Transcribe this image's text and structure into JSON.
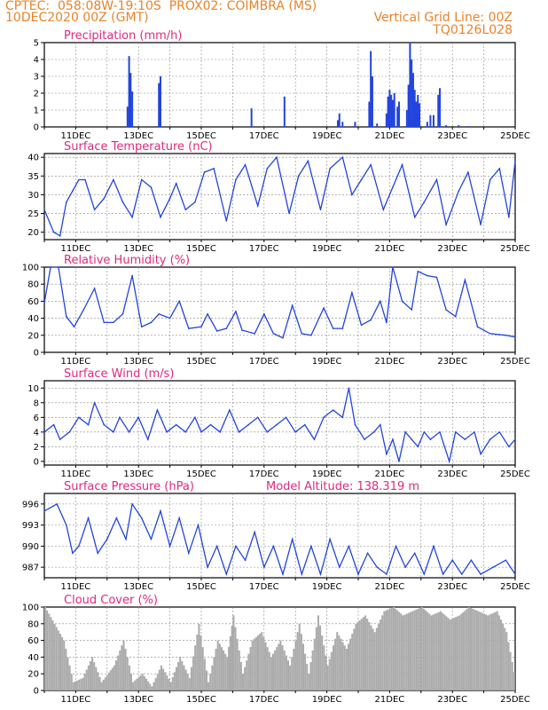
{
  "header": {
    "line1_left": "CPTEC:  058:08W-19:10S  PROX02: COIMBRA (MS)",
    "line2_left": "10DEC2020 00Z (GMT)",
    "line2_right": "Vertical Grid Line: 00Z",
    "line3_right": "TQ0126L028"
  },
  "colors": {
    "header": "#e8832a",
    "title": "#e0287e",
    "line": "#2244dd",
    "bar": "#2244dd",
    "cloud": "#aaaaaa",
    "grid": "#888888"
  },
  "x_axis": {
    "tick_labels": [
      "11DEC",
      "13DEC",
      "15DEC",
      "17DEC",
      "19DEC",
      "21DEC",
      "23DEC",
      "25DEC"
    ],
    "range_days": [
      10,
      25
    ]
  },
  "chart_data": [
    {
      "type": "bar",
      "title": "Precipitation (mm/h)",
      "ylim": [
        0,
        5
      ],
      "yticks": [
        "0",
        "1",
        "2",
        "3",
        "4",
        "5"
      ],
      "points": [
        [
          12.65,
          1.2
        ],
        [
          12.7,
          4.2
        ],
        [
          12.75,
          3.2
        ],
        [
          12.8,
          2.1
        ],
        [
          13.65,
          2.6
        ],
        [
          13.7,
          3.0
        ],
        [
          16.6,
          1.1
        ],
        [
          17.65,
          1.8
        ],
        [
          19.35,
          0.4
        ],
        [
          19.4,
          0.8
        ],
        [
          19.5,
          0.3
        ],
        [
          19.9,
          0.3
        ],
        [
          20.35,
          1.5
        ],
        [
          20.4,
          4.5
        ],
        [
          20.45,
          3.0
        ],
        [
          20.6,
          0.2
        ],
        [
          20.9,
          0.8
        ],
        [
          20.95,
          1.8
        ],
        [
          21.0,
          2.2
        ],
        [
          21.05,
          1.9
        ],
        [
          21.1,
          1.6
        ],
        [
          21.15,
          2.0
        ],
        [
          21.25,
          1.2
        ],
        [
          21.3,
          1.5
        ],
        [
          21.55,
          1.0
        ],
        [
          21.6,
          2.5
        ],
        [
          21.65,
          5.0
        ],
        [
          21.7,
          4.0
        ],
        [
          21.75,
          3.2
        ],
        [
          21.8,
          2.2
        ],
        [
          21.85,
          1.5
        ],
        [
          21.9,
          1.9
        ],
        [
          21.95,
          1.4
        ],
        [
          22.2,
          0.3
        ],
        [
          22.3,
          0.7
        ],
        [
          22.4,
          0.7
        ],
        [
          22.55,
          1.9
        ],
        [
          22.6,
          2.3
        ],
        [
          22.8,
          0.1
        ],
        [
          23.2,
          0.1
        ],
        [
          23.5,
          0.05
        ]
      ]
    },
    {
      "type": "line",
      "title": "Surface Temperature (nC)",
      "ylim": [
        18,
        41
      ],
      "yticks": [
        "20",
        "25",
        "30",
        "35",
        "40"
      ],
      "points": [
        [
          10,
          26
        ],
        [
          10.3,
          20
        ],
        [
          10.5,
          19
        ],
        [
          10.7,
          28
        ],
        [
          10.9,
          31
        ],
        [
          11.1,
          34
        ],
        [
          11.3,
          34
        ],
        [
          11.6,
          26
        ],
        [
          11.9,
          29
        ],
        [
          12.2,
          34
        ],
        [
          12.5,
          28
        ],
        [
          12.8,
          24
        ],
        [
          13.1,
          34
        ],
        [
          13.4,
          32
        ],
        [
          13.7,
          24
        ],
        [
          14.0,
          29
        ],
        [
          14.2,
          33
        ],
        [
          14.5,
          26
        ],
        [
          14.8,
          28
        ],
        [
          15.1,
          36
        ],
        [
          15.4,
          37
        ],
        [
          15.8,
          23
        ],
        [
          16.1,
          34
        ],
        [
          16.4,
          38
        ],
        [
          16.8,
          27
        ],
        [
          17.1,
          37
        ],
        [
          17.4,
          40
        ],
        [
          17.8,
          25
        ],
        [
          18.1,
          35
        ],
        [
          18.4,
          39
        ],
        [
          18.8,
          26
        ],
        [
          19.1,
          37
        ],
        [
          19.5,
          40
        ],
        [
          19.8,
          30
        ],
        [
          20.1,
          34
        ],
        [
          20.4,
          38
        ],
        [
          20.8,
          26
        ],
        [
          21.1,
          32
        ],
        [
          21.4,
          38
        ],
        [
          21.8,
          24
        ],
        [
          22.1,
          28
        ],
        [
          22.5,
          34
        ],
        [
          22.8,
          22
        ],
        [
          23.2,
          31
        ],
        [
          23.5,
          36
        ],
        [
          23.9,
          22
        ],
        [
          24.2,
          34
        ],
        [
          24.5,
          37
        ],
        [
          24.8,
          24
        ],
        [
          25.0,
          39
        ]
      ]
    },
    {
      "type": "line",
      "title": "Relative Humidity (%)",
      "ylim": [
        0,
        100
      ],
      "yticks": [
        "0",
        "20",
        "40",
        "60",
        "80",
        "100"
      ],
      "points": [
        [
          10,
          58
        ],
        [
          10.2,
          100
        ],
        [
          10.45,
          100
        ],
        [
          10.7,
          42
        ],
        [
          10.95,
          30
        ],
        [
          11.25,
          50
        ],
        [
          11.6,
          75
        ],
        [
          11.9,
          35
        ],
        [
          12.2,
          35
        ],
        [
          12.5,
          45
        ],
        [
          12.8,
          90
        ],
        [
          13.1,
          30
        ],
        [
          13.4,
          35
        ],
        [
          13.65,
          45
        ],
        [
          14.0,
          40
        ],
        [
          14.3,
          60
        ],
        [
          14.6,
          28
        ],
        [
          15.0,
          30
        ],
        [
          15.2,
          45
        ],
        [
          15.5,
          25
        ],
        [
          15.8,
          28
        ],
        [
          16.1,
          48
        ],
        [
          16.3,
          26
        ],
        [
          16.7,
          22
        ],
        [
          17.0,
          45
        ],
        [
          17.3,
          22
        ],
        [
          17.6,
          17
        ],
        [
          17.9,
          55
        ],
        [
          18.2,
          22
        ],
        [
          18.5,
          20
        ],
        [
          18.9,
          52
        ],
        [
          19.2,
          28
        ],
        [
          19.5,
          28
        ],
        [
          19.8,
          70
        ],
        [
          20.1,
          32
        ],
        [
          20.4,
          38
        ],
        [
          20.7,
          60
        ],
        [
          20.9,
          35
        ],
        [
          21.1,
          100
        ],
        [
          21.4,
          60
        ],
        [
          21.7,
          50
        ],
        [
          21.9,
          95
        ],
        [
          22.2,
          90
        ],
        [
          22.5,
          88
        ],
        [
          22.8,
          50
        ],
        [
          23.1,
          42
        ],
        [
          23.4,
          85
        ],
        [
          23.8,
          30
        ],
        [
          24.2,
          22
        ],
        [
          24.7,
          20
        ],
        [
          25.0,
          18
        ]
      ]
    },
    {
      "type": "line",
      "title": "Surface Wind (m/s)",
      "ylim": [
        -0.5,
        11
      ],
      "yticks": [
        "0",
        "2",
        "4",
        "6",
        "8",
        "10"
      ],
      "points": [
        [
          10,
          4
        ],
        [
          10.3,
          5
        ],
        [
          10.5,
          3
        ],
        [
          10.8,
          4
        ],
        [
          11.1,
          6
        ],
        [
          11.4,
          5
        ],
        [
          11.6,
          8
        ],
        [
          11.9,
          5
        ],
        [
          12.2,
          4
        ],
        [
          12.4,
          6
        ],
        [
          12.7,
          4
        ],
        [
          13.0,
          6
        ],
        [
          13.3,
          3
        ],
        [
          13.6,
          7
        ],
        [
          13.9,
          4
        ],
        [
          14.2,
          5
        ],
        [
          14.5,
          4
        ],
        [
          14.8,
          6
        ],
        [
          15.0,
          4
        ],
        [
          15.3,
          5
        ],
        [
          15.6,
          4
        ],
        [
          15.9,
          7
        ],
        [
          16.2,
          4
        ],
        [
          16.5,
          5
        ],
        [
          16.8,
          6
        ],
        [
          17.1,
          4
        ],
        [
          17.4,
          5
        ],
        [
          17.7,
          6
        ],
        [
          18.0,
          4
        ],
        [
          18.3,
          5
        ],
        [
          18.6,
          3
        ],
        [
          18.9,
          6
        ],
        [
          19.2,
          7
        ],
        [
          19.5,
          6
        ],
        [
          19.7,
          10
        ],
        [
          19.9,
          5
        ],
        [
          20.2,
          3
        ],
        [
          20.5,
          4
        ],
        [
          20.7,
          5
        ],
        [
          20.9,
          1
        ],
        [
          21.1,
          3
        ],
        [
          21.3,
          0
        ],
        [
          21.5,
          4
        ],
        [
          21.7,
          3
        ],
        [
          21.9,
          2
        ],
        [
          22.1,
          4
        ],
        [
          22.3,
          3
        ],
        [
          22.6,
          4
        ],
        [
          22.9,
          0
        ],
        [
          23.1,
          4
        ],
        [
          23.4,
          3
        ],
        [
          23.7,
          4
        ],
        [
          23.9,
          1
        ],
        [
          24.2,
          3
        ],
        [
          24.5,
          4
        ],
        [
          24.8,
          2
        ],
        [
          25.0,
          3
        ]
      ]
    },
    {
      "type": "line",
      "title": "Surface Pressure (hPa)",
      "subtitle": "Model Altitude: 138.319 m",
      "ylim": [
        985.5,
        997.5
      ],
      "yticks": [
        "987",
        "990",
        "993",
        "996"
      ],
      "points": [
        [
          10,
          995
        ],
        [
          10.4,
          996
        ],
        [
          10.7,
          993
        ],
        [
          10.9,
          989
        ],
        [
          11.1,
          990
        ],
        [
          11.4,
          994
        ],
        [
          11.7,
          989
        ],
        [
          12.0,
          991
        ],
        [
          12.3,
          994
        ],
        [
          12.6,
          991
        ],
        [
          12.8,
          996
        ],
        [
          13.1,
          994
        ],
        [
          13.4,
          991
        ],
        [
          13.7,
          995
        ],
        [
          14.0,
          990
        ],
        [
          14.3,
          994
        ],
        [
          14.6,
          989
        ],
        [
          14.9,
          993
        ],
        [
          15.2,
          987
        ],
        [
          15.5,
          990
        ],
        [
          15.8,
          986
        ],
        [
          16.1,
          990
        ],
        [
          16.4,
          988
        ],
        [
          16.7,
          992
        ],
        [
          17.0,
          987
        ],
        [
          17.3,
          990
        ],
        [
          17.6,
          986
        ],
        [
          17.9,
          991
        ],
        [
          18.2,
          986
        ],
        [
          18.5,
          990
        ],
        [
          18.8,
          986
        ],
        [
          19.1,
          991
        ],
        [
          19.4,
          987
        ],
        [
          19.7,
          990
        ],
        [
          20.0,
          986
        ],
        [
          20.3,
          989
        ],
        [
          20.6,
          987
        ],
        [
          20.9,
          986
        ],
        [
          21.2,
          990
        ],
        [
          21.5,
          987
        ],
        [
          21.8,
          989
        ],
        [
          22.1,
          986
        ],
        [
          22.4,
          990
        ],
        [
          22.7,
          986
        ],
        [
          23.0,
          988
        ],
        [
          23.3,
          986
        ],
        [
          23.6,
          988
        ],
        [
          23.9,
          986
        ],
        [
          24.3,
          987
        ],
        [
          24.7,
          988
        ],
        [
          25.0,
          986
        ]
      ]
    },
    {
      "type": "area",
      "title": "Cloud Cover (%)",
      "ylim": [
        0,
        100
      ],
      "yticks": [
        "0",
        "20",
        "40",
        "60",
        "80",
        "100"
      ],
      "points": [
        [
          10,
          100
        ],
        [
          10.3,
          80
        ],
        [
          10.6,
          60
        ],
        [
          10.9,
          10
        ],
        [
          11.2,
          15
        ],
        [
          11.5,
          40
        ],
        [
          11.8,
          10
        ],
        [
          12.2,
          30
        ],
        [
          12.5,
          60
        ],
        [
          12.8,
          10
        ],
        [
          13.1,
          20
        ],
        [
          13.4,
          5
        ],
        [
          13.7,
          30
        ],
        [
          14.0,
          10
        ],
        [
          14.3,
          40
        ],
        [
          14.6,
          15
        ],
        [
          14.9,
          80
        ],
        [
          15.2,
          10
        ],
        [
          15.5,
          60
        ],
        [
          15.8,
          40
        ],
        [
          16.0,
          90
        ],
        [
          16.3,
          20
        ],
        [
          16.6,
          60
        ],
        [
          16.9,
          70
        ],
        [
          17.2,
          40
        ],
        [
          17.5,
          60
        ],
        [
          17.8,
          30
        ],
        [
          18.1,
          80
        ],
        [
          18.4,
          20
        ],
        [
          18.7,
          90
        ],
        [
          19.0,
          30
        ],
        [
          19.3,
          70
        ],
        [
          19.6,
          50
        ],
        [
          19.9,
          80
        ],
        [
          20.2,
          90
        ],
        [
          20.5,
          70
        ],
        [
          20.8,
          95
        ],
        [
          21.1,
          100
        ],
        [
          21.4,
          90
        ],
        [
          21.7,
          95
        ],
        [
          22.0,
          100
        ],
        [
          22.3,
          90
        ],
        [
          22.6,
          95
        ],
        [
          22.9,
          85
        ],
        [
          23.2,
          90
        ],
        [
          23.5,
          100
        ],
        [
          23.8,
          95
        ],
        [
          24.1,
          90
        ],
        [
          24.4,
          95
        ],
        [
          24.7,
          70
        ],
        [
          25.0,
          10
        ]
      ]
    }
  ]
}
